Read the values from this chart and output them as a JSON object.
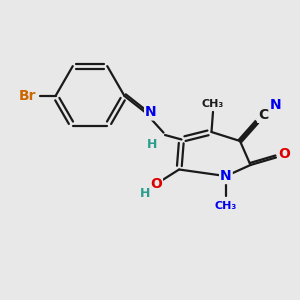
{
  "bg_color": "#e8e8e8",
  "bond_color": "#1a1a1a",
  "bond_width": 1.6,
  "atom_colors": {
    "C": "#1a1a1a",
    "N": "#0000ee",
    "O": "#dd0000",
    "Br": "#cc6600",
    "H": "#2a9d8f"
  },
  "font_size_main": 10,
  "font_size_small": 8,
  "figsize": [
    3.0,
    3.0
  ],
  "dpi": 100
}
